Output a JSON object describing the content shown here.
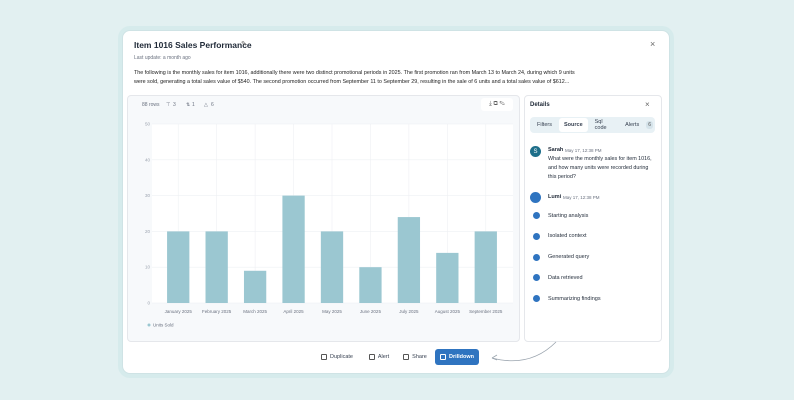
{
  "header": {
    "title": "Item 1016 Sales Performance",
    "updated": "Last update: a month ago",
    "description": "The following is the monthly sales for item 1016, additionally there were two distinct promotional periods in 2025. The first promotion ran from March 13 to March 24, during which 9 units were sold, generating a total sales value of $540. The second promotion occurred from September 11 to September 29, resulting in the sale of 6 units and a total sales value of $612..."
  },
  "toolbar": {
    "rows": "88 rows",
    "filters": "3",
    "sorts": "1",
    "alerts": "6"
  },
  "chart_data": {
    "type": "bar",
    "categories": [
      "January 2025",
      "February 2025",
      "March 2025",
      "April 2025",
      "May 2025",
      "June 2025",
      "July 2025",
      "August 2025",
      "September 2025"
    ],
    "series": [
      {
        "name": "Units Sold",
        "color": "#9bc7d1",
        "values": [
          20,
          20,
          9,
          30,
          20,
          10,
          24,
          14,
          20
        ]
      }
    ],
    "ylim": [
      0,
      50
    ],
    "yticks": [
      0,
      10,
      20,
      30,
      40,
      50
    ],
    "grid": true
  },
  "details": {
    "title": "Details",
    "tabs": [
      "Filters",
      "Source",
      "Sql code",
      "Alerts"
    ],
    "alerts_count": "6",
    "messages": [
      {
        "avatar": "S",
        "author": "Sarah",
        "time": "May 17, 12:38 PM",
        "text": "What were the monthly sales for item 1016, and how many units were recorded during this period?"
      },
      {
        "author": "Lumi",
        "time": "May 17, 12:38 PM"
      }
    ],
    "steps": [
      "Starting analysis",
      "Isolated context",
      "Generated query",
      "Data retrieved",
      "Summarizing findings"
    ]
  },
  "actions": [
    "Duplicate",
    "Alert",
    "Share",
    "Drilldown"
  ]
}
